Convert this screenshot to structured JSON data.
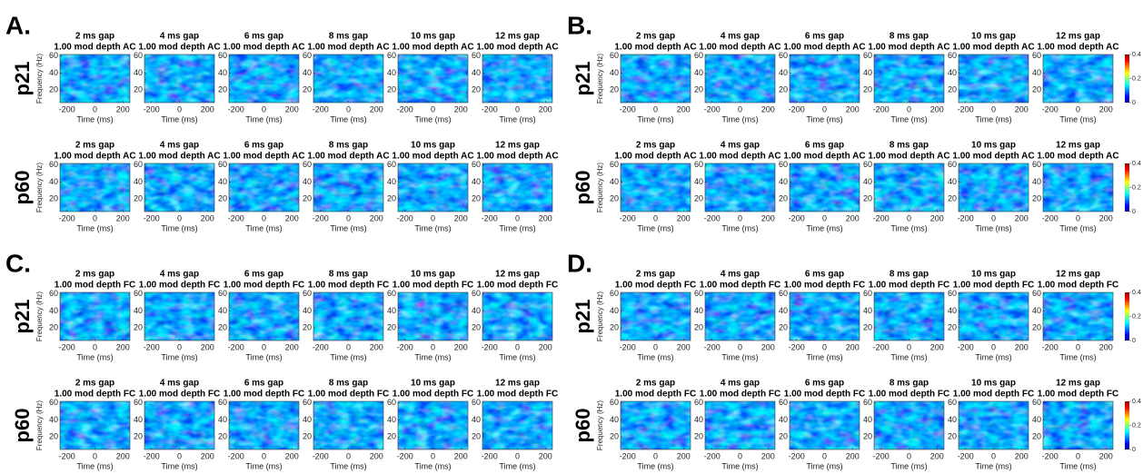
{
  "panels": [
    {
      "label": "A.",
      "colorbar": false,
      "rows": [
        {
          "label": "p21",
          "plots": [
            {
              "gap": "2 ms gap",
              "condition": "1.00 mod depth AC"
            },
            {
              "gap": "4 ms gap",
              "condition": "1.00 mod depth AC"
            },
            {
              "gap": "6 ms gap",
              "condition": "1.00 mod depth AC"
            },
            {
              "gap": "8 ms gap",
              "condition": "1.00 mod depth AC"
            },
            {
              "gap": "10 ms gap",
              "condition": "1.00 mod depth AC"
            },
            {
              "gap": "12 ms gap",
              "condition": "1.00 mod depth AC"
            }
          ]
        },
        {
          "label": "p60",
          "plots": [
            {
              "gap": "2 ms gap",
              "condition": "1.00 mod depth AC"
            },
            {
              "gap": "4 ms gap",
              "condition": "1.00 mod depth AC"
            },
            {
              "gap": "6 ms gap",
              "condition": "1.00 mod depth AC"
            },
            {
              "gap": "8 ms gap",
              "condition": "1.00 mod depth AC"
            },
            {
              "gap": "10 ms gap",
              "condition": "1.00 mod depth AC"
            },
            {
              "gap": "12 ms gap",
              "condition": "1.00 mod depth AC"
            }
          ]
        }
      ]
    },
    {
      "label": "B.",
      "colorbar": true,
      "rows": [
        {
          "label": "p21",
          "plots": [
            {
              "gap": "2 ms gap",
              "condition": "1.00 mod depth AC"
            },
            {
              "gap": "4 ms gap",
              "condition": "1.00 mod depth AC"
            },
            {
              "gap": "6 ms gap",
              "condition": "1.00 mod depth AC"
            },
            {
              "gap": "8 ms gap",
              "condition": "1.00 mod depth AC"
            },
            {
              "gap": "10 ms gap",
              "condition": "1.00 mod depth AC"
            },
            {
              "gap": "12 ms gap",
              "condition": "1.00 mod depth AC"
            }
          ]
        },
        {
          "label": "p60",
          "plots": [
            {
              "gap": "2 ms gap",
              "condition": "1.00 mod depth AC"
            },
            {
              "gap": "4 ms gap",
              "condition": "1.00 mod depth AC"
            },
            {
              "gap": "6 ms gap",
              "condition": "1.00 mod depth AC"
            },
            {
              "gap": "8 ms gap",
              "condition": "1.00 mod depth AC"
            },
            {
              "gap": "10 ms gap",
              "condition": "1.00 mod depth AC"
            },
            {
              "gap": "12 ms gap",
              "condition": "1.00 mod depth AC"
            }
          ]
        }
      ]
    },
    {
      "label": "C.",
      "colorbar": false,
      "rows": [
        {
          "label": "p21",
          "plots": [
            {
              "gap": "2 ms gap",
              "condition": "1.00 mod depth FC"
            },
            {
              "gap": "4 ms gap",
              "condition": "1.00 mod depth FC"
            },
            {
              "gap": "6 ms gap",
              "condition": "1.00 mod depth FC"
            },
            {
              "gap": "8 ms gap",
              "condition": "1.00 mod depth FC"
            },
            {
              "gap": "10 ms gap",
              "condition": "1.00 mod depth FC"
            },
            {
              "gap": "12 ms gap",
              "condition": "1.00 mod depth FC"
            }
          ]
        },
        {
          "label": "p60",
          "plots": [
            {
              "gap": "2 ms gap",
              "condition": "1.00 mod depth FC"
            },
            {
              "gap": "4 ms gap",
              "condition": "1.00 mod depth FC"
            },
            {
              "gap": "6 ms gap",
              "condition": "1.00 mod depth FC"
            },
            {
              "gap": "8 ms gap",
              "condition": "1.00 mod depth FC"
            },
            {
              "gap": "10 ms gap",
              "condition": "1.00 mod depth FC"
            },
            {
              "gap": "12 ms gap",
              "condition": "1.00 mod depth FC"
            }
          ]
        }
      ]
    },
    {
      "label": "D.",
      "colorbar": true,
      "rows": [
        {
          "label": "p21",
          "plots": [
            {
              "gap": "2 ms gap",
              "condition": "1.00 mod depth FC"
            },
            {
              "gap": "4 ms gap",
              "condition": "1.00 mod depth FC"
            },
            {
              "gap": "6 ms gap",
              "condition": "1.00 mod depth FC"
            },
            {
              "gap": "8 ms gap",
              "condition": "1.00 mod depth FC"
            },
            {
              "gap": "10 ms gap",
              "condition": "1.00 mod depth FC"
            },
            {
              "gap": "12 ms gap",
              "condition": "1.00 mod depth FC"
            }
          ]
        },
        {
          "label": "p60",
          "plots": [
            {
              "gap": "2 ms gap",
              "condition": "1.00 mod depth FC"
            },
            {
              "gap": "4 ms gap",
              "condition": "1.00 mod depth FC"
            },
            {
              "gap": "6 ms gap",
              "condition": "1.00 mod depth FC"
            },
            {
              "gap": "8 ms gap",
              "condition": "1.00 mod depth FC"
            },
            {
              "gap": "10 ms gap",
              "condition": "1.00 mod depth FC"
            },
            {
              "gap": "12 ms gap",
              "condition": "1.00 mod depth FC"
            }
          ]
        }
      ]
    }
  ],
  "axes": {
    "xlabel": "Time (ms)",
    "ylabel": "Frequency (Hz)",
    "xlim": [
      -250,
      250
    ],
    "ylim": [
      5,
      62
    ],
    "xticks": [
      -200,
      0,
      200
    ],
    "yticks": [
      20,
      40,
      60
    ],
    "colorbar_lim": [
      0,
      0.4
    ],
    "colorbar_ticks": [
      0,
      0.2,
      0.4
    ]
  }
}
